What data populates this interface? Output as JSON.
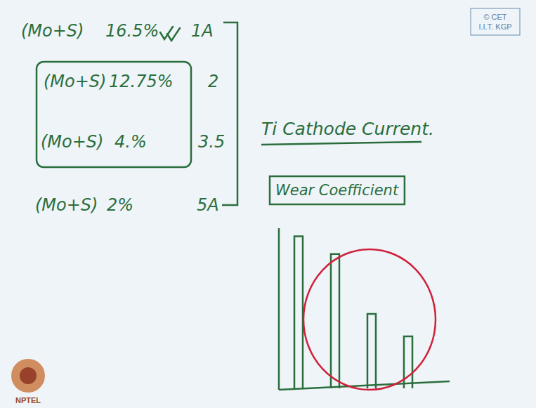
{
  "notes": {
    "rows": [
      {
        "compound": "(Mo+S)",
        "percent": "16.5%",
        "current": "1A"
      },
      {
        "compound": "(Mo+S)",
        "percent": "12.75%",
        "current": "2"
      },
      {
        "compound": "(Mo+S)",
        "percent": "4.%",
        "current": "3.5"
      },
      {
        "compound": "(Mo+S)",
        "percent": "2%",
        "current": "5A"
      }
    ],
    "heading": "Ti Cathode Current.",
    "copyright": [
      "© CET",
      "I.I.T. KGP"
    ],
    "watermark": "NPTEL"
  },
  "chart_data": {
    "type": "bar",
    "title": "Wear Coefficient",
    "categories": [
      null,
      null,
      null,
      null
    ],
    "values": [
      95,
      84,
      47,
      33
    ],
    "color": "#2b6e3c",
    "ylim": [
      0,
      100
    ],
    "tick_labels": false
  }
}
